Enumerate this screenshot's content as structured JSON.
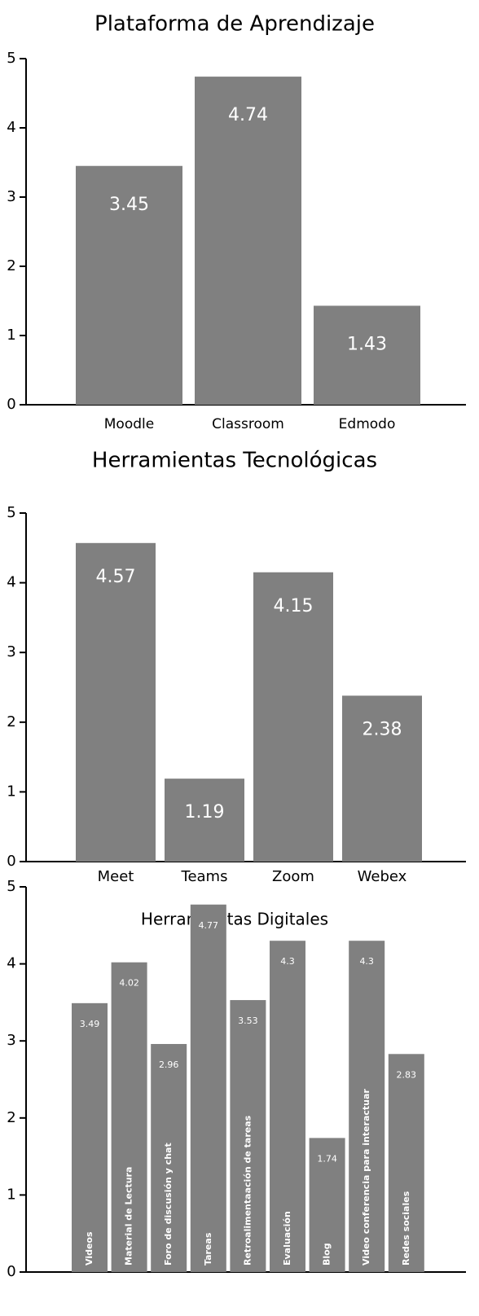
{
  "chart_data": [
    {
      "type": "bar",
      "title": "Plataforma de Aprendizaje",
      "categories": [
        "Moodle",
        "Classroom",
        "Edmodo"
      ],
      "values": [
        3.45,
        4.74,
        1.43
      ],
      "color": "#808080",
      "ylim": [
        0,
        5
      ],
      "yticks": [
        0,
        1,
        2,
        3,
        4,
        5
      ]
    },
    {
      "type": "bar",
      "title": "Herramientas Tecnológicas",
      "categories": [
        "Meet",
        "Teams",
        "Zoom",
        "Webex"
      ],
      "values": [
        4.57,
        1.19,
        4.15,
        2.38
      ],
      "color": "#808080",
      "ylim": [
        0,
        5
      ],
      "yticks": [
        0,
        1,
        2,
        3,
        4,
        5
      ]
    },
    {
      "type": "bar",
      "title": "Herramientas Digitales",
      "categories": [
        "Videos",
        "Material de Lectura",
        "Foro de discusión y chat",
        "Tareas",
        "Retroalimentaación de tareas",
        "Evaluación",
        "Blog",
        "Video conferencia para interactuar",
        "Redes sociales"
      ],
      "values": [
        3.49,
        4.02,
        2.96,
        4.77,
        3.53,
        4.3,
        1.74,
        4.3,
        2.83
      ],
      "color": "#808080",
      "ylim": [
        0,
        5
      ],
      "yticks": [
        0,
        1,
        2,
        3,
        4,
        5
      ]
    }
  ]
}
